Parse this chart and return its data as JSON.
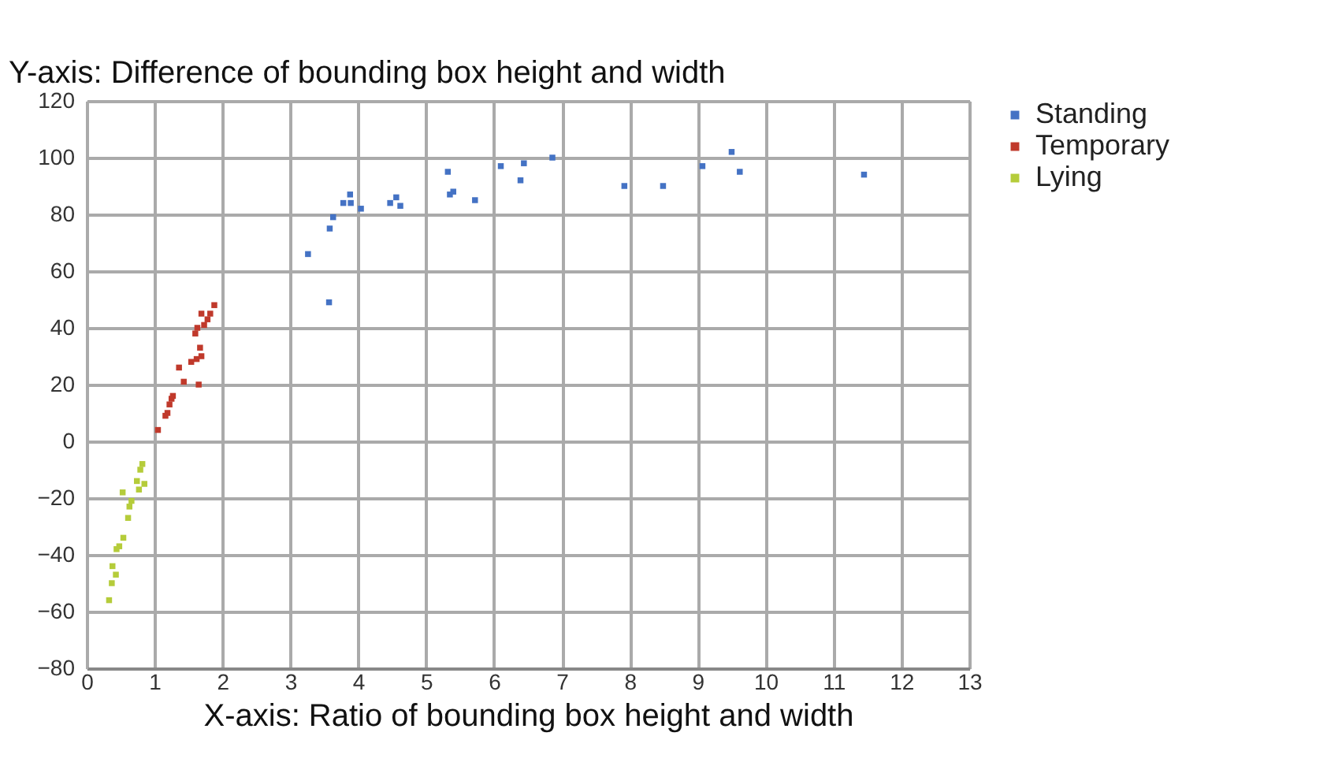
{
  "chart_data": {
    "type": "scatter",
    "xlabel": "X-axis: Ratio of bounding box height and width",
    "ylabel": "Y-axis:  Difference of bounding box height and width",
    "xlim": [
      0,
      13
    ],
    "xticks": [
      0,
      1,
      2,
      3,
      4,
      5,
      6,
      7,
      8,
      9,
      10,
      11,
      12,
      13
    ],
    "ylim": [
      -80,
      120
    ],
    "yticks": [
      -80,
      -60,
      -40,
      -20,
      0,
      20,
      40,
      60,
      80,
      100,
      120
    ],
    "grid": true,
    "legend": "right",
    "marker": "square",
    "series": [
      {
        "name": "Standing",
        "color": "#4472c4",
        "x": [
          3.26,
          3.57,
          3.58,
          3.63,
          3.78,
          3.88,
          3.89,
          4.04,
          4.47,
          4.56,
          4.62,
          5.32,
          5.35,
          5.4,
          5.72,
          6.1,
          6.44,
          6.39,
          6.86,
          7.92,
          8.49,
          9.07,
          9.5,
          9.62,
          11.45
        ],
        "values": [
          66,
          49,
          75,
          79,
          84,
          87,
          84,
          82,
          84,
          86,
          83,
          95,
          87,
          88,
          85,
          97,
          98,
          92,
          100,
          90,
          90,
          97,
          102,
          95,
          94
        ]
      },
      {
        "name": "Temporary",
        "color": "#c0392b",
        "x": [
          1.05,
          1.16,
          1.19,
          1.22,
          1.25,
          1.27,
          1.36,
          1.43,
          1.54,
          1.62,
          1.69,
          1.67,
          1.65,
          1.6,
          1.63,
          1.69,
          1.78,
          1.82,
          1.88,
          1.73
        ],
        "values": [
          4,
          9,
          10,
          13,
          15,
          16,
          26,
          21,
          28,
          29,
          30,
          33,
          20,
          38,
          40,
          45,
          43,
          45,
          48,
          41
        ]
      },
      {
        "name": "Lying",
        "color": "#b5cc3a",
        "x": [
          0.82,
          0.79,
          0.74,
          0.85,
          0.77,
          0.53,
          0.66,
          0.63,
          0.61,
          0.54,
          0.48,
          0.44,
          0.38,
          0.43,
          0.37,
          0.33
        ],
        "values": [
          -8,
          -10,
          -14,
          -15,
          -17,
          -18,
          -21,
          -23,
          -27,
          -34,
          -37,
          -38,
          -44,
          -47,
          -50,
          -56
        ]
      }
    ]
  }
}
